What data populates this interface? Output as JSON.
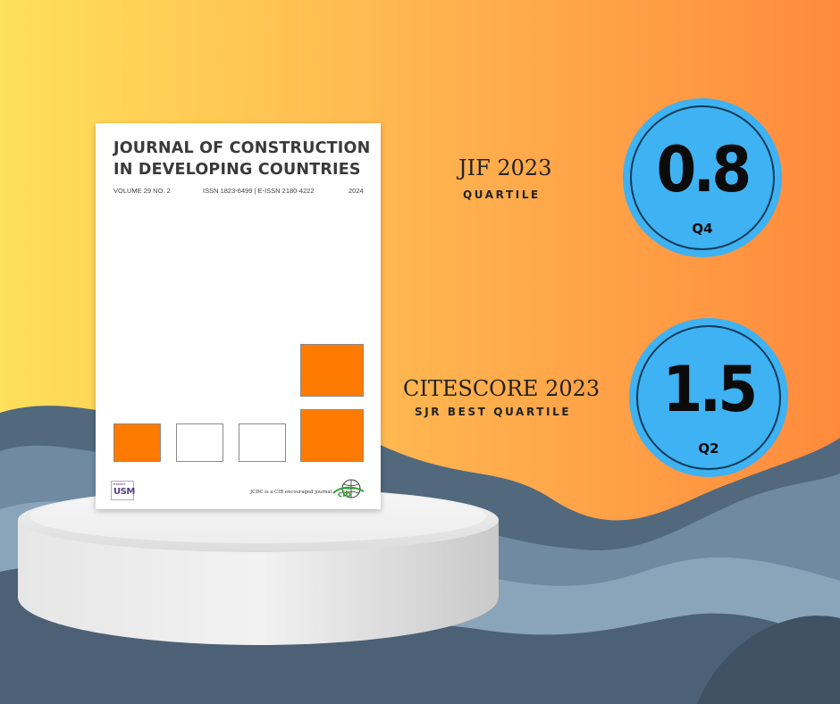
{
  "colors": {
    "gradient_left": "#ffe05a",
    "gradient_right": "#ff8a3c",
    "circle_fill": "#3eb2f2",
    "cover_orange": "#ff7a00"
  },
  "cover": {
    "title_line1": "JOURNAL OF CONSTRUCTION",
    "title_line2": "IN DEVELOPING COUNTRIES",
    "volume": "VOLUME 29 NO. 2",
    "issn": "ISSN 1823-6499 | E-ISSN 2180-4222",
    "year": "2024",
    "usm_small": "PENERBIT",
    "usm_logo": "USM",
    "cib_note": "JCDC is a CIB encouraged journal",
    "cib_logo": "cib"
  },
  "metrics": [
    {
      "label": "JIF 2023",
      "sub": "QUARTILE",
      "value": "0.8",
      "quartile": "Q4"
    },
    {
      "label": "CITESCORE 2023",
      "sub": "SJR BEST QUARTILE",
      "value": "1.5",
      "quartile": "Q2"
    }
  ]
}
